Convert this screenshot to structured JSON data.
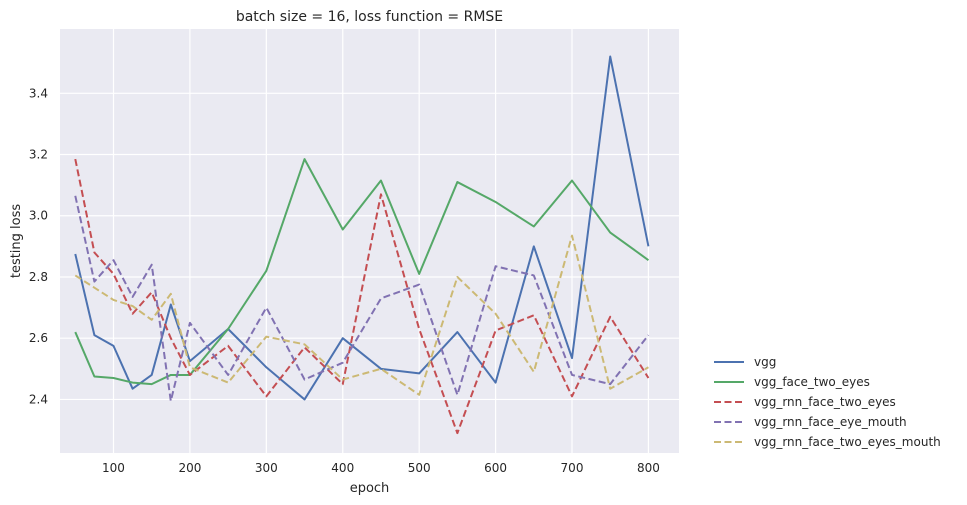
{
  "chart_data": {
    "type": "line",
    "title": "batch size = 16, loss function = RMSE",
    "xlabel": "epoch",
    "ylabel": "testing loss",
    "xlim": [
      30,
      840
    ],
    "ylim": [
      2.225,
      3.61
    ],
    "xticks": [
      100,
      200,
      300,
      400,
      500,
      600,
      700,
      800
    ],
    "yticks": [
      2.4,
      2.6,
      2.8,
      3.0,
      3.2,
      3.4
    ],
    "ytick_labels": [
      "2.4",
      "2.6",
      "2.8",
      "3.0",
      "3.2",
      "3.4"
    ],
    "grid": true,
    "legend_position": "right",
    "x": [
      50,
      75,
      100,
      125,
      150,
      175,
      200,
      250,
      300,
      350,
      400,
      450,
      500,
      550,
      600,
      650,
      700,
      750,
      800
    ],
    "series": [
      {
        "name": "vgg",
        "color": "#4c72b0",
        "dash": "solid",
        "values": [
          2.875,
          2.61,
          2.575,
          2.435,
          2.48,
          2.71,
          2.525,
          2.63,
          2.505,
          2.4,
          2.6,
          2.5,
          2.485,
          2.62,
          2.455,
          2.9,
          2.535,
          3.52,
          2.9
        ]
      },
      {
        "name": "vgg_face_two_eyes",
        "color": "#55a868",
        "dash": "solid",
        "values": [
          2.62,
          2.475,
          2.47,
          2.455,
          2.45,
          2.48,
          2.48,
          2.63,
          2.82,
          3.185,
          2.955,
          3.115,
          2.81,
          3.11,
          3.045,
          2.965,
          3.115,
          2.945,
          2.855
        ]
      },
      {
        "name": "vgg_rnn_face_two_eyes",
        "color": "#c44e52",
        "dash": "dashed",
        "values": [
          3.185,
          2.88,
          2.81,
          2.68,
          2.75,
          2.6,
          2.48,
          2.575,
          2.41,
          2.57,
          2.45,
          3.07,
          2.63,
          2.29,
          2.625,
          2.675,
          2.41,
          2.67,
          2.47
        ]
      },
      {
        "name": "vgg_rnn_face_eye_mouth",
        "color": "#8172b2",
        "dash": "dashed",
        "values": [
          3.065,
          2.785,
          2.855,
          2.735,
          2.84,
          2.395,
          2.65,
          2.48,
          2.7,
          2.465,
          2.52,
          2.73,
          2.775,
          2.415,
          2.835,
          2.805,
          2.48,
          2.45,
          2.61
        ]
      },
      {
        "name": "vgg_rnn_face_two_eyes_mouth",
        "color": "#ccb974",
        "dash": "dashed",
        "values": [
          2.805,
          2.765,
          2.725,
          2.705,
          2.66,
          2.745,
          2.505,
          2.455,
          2.605,
          2.58,
          2.465,
          2.5,
          2.415,
          2.8,
          2.68,
          2.49,
          2.935,
          2.435,
          2.505
        ]
      }
    ]
  }
}
